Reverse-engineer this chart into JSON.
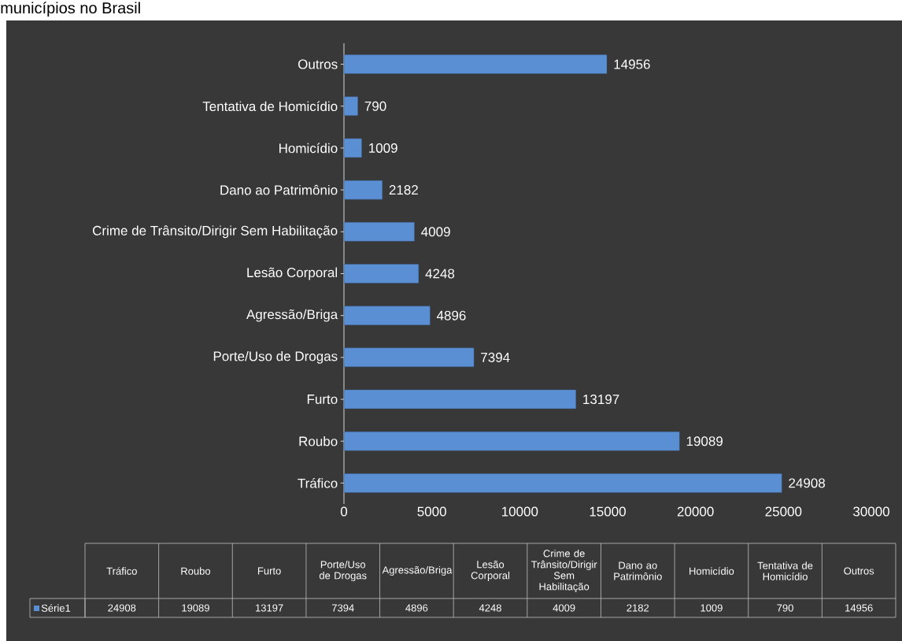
{
  "chart_data": {
    "type": "bar",
    "orientation": "horizontal",
    "title": "municípios no Brasil",
    "categories": [
      "Outros",
      "Tentativa de Homicídio",
      "Homicídio",
      "Dano ao Patrimônio",
      "Crime de Trânsito/Dirigir Sem Habilitação",
      "Lesão Corporal",
      "Agressão/Briga",
      "Porte/Uso de Drogas",
      "Furto",
      "Roubo",
      "Tráfico"
    ],
    "series": [
      {
        "name": "Série1",
        "color": "#5b8fd4",
        "values": [
          14956,
          790,
          1009,
          2182,
          4009,
          4248,
          4896,
          7394,
          13197,
          19089,
          24908
        ],
        "value_labels": [
          "14956",
          "790",
          "1009",
          "2182",
          "4009",
          "4248",
          "4896",
          "7394",
          "13197",
          "19089",
          "24908"
        ]
      }
    ],
    "xlim": [
      0,
      30000
    ],
    "xticks": [
      0,
      5000,
      10000,
      15000,
      20000,
      25000,
      30000
    ],
    "legend": "bottom"
  }
}
